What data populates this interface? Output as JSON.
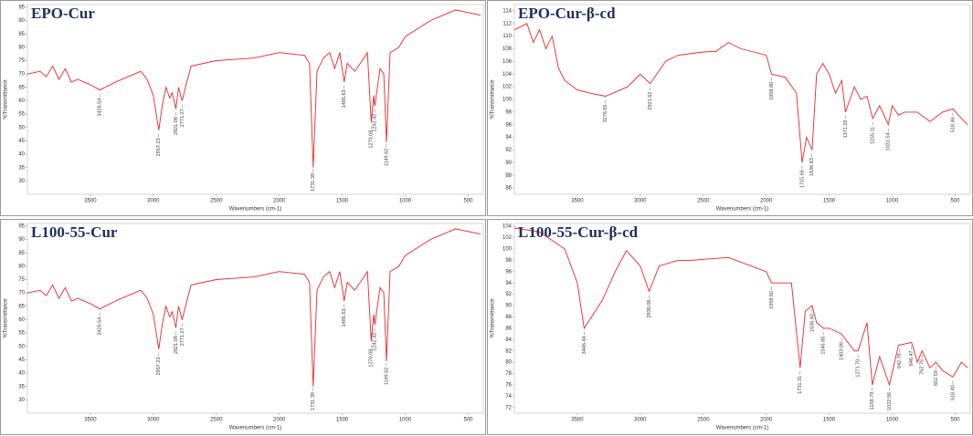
{
  "chart_data": [
    {
      "type": "line",
      "title": "EPO-Cur",
      "x_label": "Wavenumbers (cm-1)",
      "y_label": "%Transmittance",
      "x": [
        4000,
        3900,
        3850,
        3800,
        3750,
        3700,
        3650,
        3600,
        3500,
        3426,
        3300,
        3200,
        3100,
        3050,
        3000,
        2957,
        2930,
        2900,
        2870,
        2850,
        2821,
        2800,
        2771,
        2740,
        2700,
        2500,
        2200,
        2000,
        1800,
        1760,
        1731,
        1700,
        1650,
        1600,
        1560,
        1520,
        1485,
        1460,
        1400,
        1300,
        1270,
        1250,
        1242,
        1200,
        1170,
        1149,
        1120,
        1050,
        1000,
        900,
        800,
        700,
        600,
        500,
        400
      ],
      "series": [
        {
          "color": "#e8262a",
          "values": [
            70,
            71,
            69,
            73,
            68,
            72,
            67,
            68,
            66,
            64,
            67,
            69,
            71,
            68,
            62,
            49,
            58,
            65,
            61,
            63,
            57,
            65,
            60,
            66,
            73,
            75,
            76,
            78,
            77,
            74,
            35,
            71,
            76,
            78,
            72,
            78,
            67,
            74,
            71,
            78,
            52,
            62,
            58,
            72,
            70,
            44.5,
            78,
            80,
            84,
            87,
            90,
            92,
            94,
            93,
            92
          ]
        }
      ],
      "xlim": [
        4000,
        380
      ],
      "ylim": [
        25,
        96
      ],
      "xticks": [
        3500,
        3000,
        2500,
        2000,
        1500,
        1000,
        500
      ],
      "yticks": [
        30,
        35,
        40,
        45,
        50,
        55,
        60,
        65,
        70,
        75,
        80,
        85,
        90,
        95
      ],
      "peak_labels": [
        3426.54,
        2957.23,
        2821.08,
        2771.27,
        1731.39,
        1485.63,
        1270.08,
        1242.42,
        1149.62
      ]
    },
    {
      "type": "line",
      "title": "EPO-Cur-β-cd",
      "x_label": "Wavenumbers (cm-1)",
      "y_label": "%Transmittance",
      "x": [
        4000,
        3900,
        3850,
        3800,
        3750,
        3700,
        3650,
        3600,
        3500,
        3400,
        3276,
        3100,
        3000,
        2921,
        2800,
        2700,
        2500,
        2400,
        2300,
        2200,
        2000,
        1958,
        1850,
        1760,
        1715,
        1680,
        1636,
        1600,
        1550,
        1500,
        1450,
        1400,
        1371,
        1300,
        1250,
        1200,
        1155,
        1100,
        1031,
        1000,
        950,
        900,
        800,
        700,
        600,
        518,
        450,
        400
      ],
      "series": [
        {
          "color": "#e8262a",
          "values": [
            111,
            112,
            109,
            111,
            108,
            110,
            105,
            103,
            101.5,
            101,
            100.5,
            102,
            104,
            102.5,
            106,
            107,
            107.5,
            107.6,
            109,
            108,
            107,
            104,
            103.5,
            101,
            90,
            94,
            92,
            104,
            105.7,
            104,
            101,
            103,
            98,
            102,
            100,
            100.5,
            97,
            99,
            96,
            99,
            97.5,
            98,
            98,
            96.5,
            98,
            98.5,
            97,
            96
          ]
        }
      ],
      "xlim": [
        4000,
        380
      ],
      "ylim": [
        85,
        115
      ],
      "xticks": [
        3500,
        3000,
        2500,
        2000,
        1500,
        1000,
        500
      ],
      "yticks": [
        86,
        88,
        90,
        92,
        94,
        96,
        98,
        100,
        102,
        104,
        106,
        108,
        110,
        112,
        114
      ],
      "peak_labels": [
        3276.65,
        2921.62,
        {
          "value": 1958.8,
          "label": "1958.80"
        },
        1715.66,
        1636.83,
        1371.29,
        1155.11,
        1031.54,
        518.46
      ]
    },
    {
      "type": "line",
      "title": "L100-55-Cur",
      "x_label": "Wavenumbers (cm-1)",
      "y_label": "%Transmittance",
      "x": [
        4000,
        3900,
        3850,
        3800,
        3750,
        3700,
        3650,
        3600,
        3500,
        3426,
        3300,
        3200,
        3100,
        3050,
        3000,
        2957,
        2930,
        2900,
        2870,
        2850,
        2821,
        2800,
        2771,
        2740,
        2700,
        2500,
        2200,
        2000,
        1800,
        1760,
        1731,
        1700,
        1650,
        1600,
        1560,
        1520,
        1485,
        1460,
        1400,
        1300,
        1270,
        1250,
        1242,
        1200,
        1170,
        1149,
        1120,
        1050,
        1000,
        900,
        800,
        700,
        600,
        500,
        400
      ],
      "series": [
        {
          "color": "#e8262a",
          "values": [
            70,
            71,
            69,
            73,
            68,
            72,
            67,
            68,
            66,
            64,
            67,
            69,
            71,
            68,
            62,
            49,
            58,
            65,
            61,
            63,
            57,
            65,
            60,
            66,
            73,
            75,
            76,
            78,
            77,
            74,
            35,
            71,
            76,
            78,
            72,
            78,
            67,
            74,
            71,
            78,
            52,
            62,
            58,
            72,
            70,
            44.5,
            78,
            80,
            84,
            87,
            90,
            92,
            94,
            93,
            92
          ]
        }
      ],
      "xlim": [
        4000,
        380
      ],
      "ylim": [
        25,
        96
      ],
      "xticks": [
        3500,
        3000,
        2500,
        2000,
        1500,
        1000,
        500
      ],
      "yticks": [
        30,
        35,
        40,
        45,
        50,
        55,
        60,
        65,
        70,
        75,
        80,
        85,
        90,
        95
      ],
      "peak_labels": [
        3426.54,
        2957.23,
        2821.08,
        2771.27,
        1731.39,
        1485.63,
        1270.08,
        1242.42,
        1149.62
      ]
    },
    {
      "type": "line",
      "title": "L100-55-Cur-β-cd",
      "x_label": "Wavenumbers (cm-1)",
      "y_label": "%Transmittance",
      "x": [
        4000,
        3800,
        3600,
        3500,
        3446,
        3300,
        3200,
        3110,
        3000,
        2930,
        2850,
        2700,
        2600,
        2300,
        2000,
        1958,
        1800,
        1731,
        1690,
        1636,
        1600,
        1546,
        1500,
        1403,
        1300,
        1271,
        1200,
        1158,
        1100,
        1022,
        950,
        846,
        800,
        762,
        700,
        652,
        600,
        518,
        450,
        400
      ],
      "series": [
        {
          "color": "#e8262a",
          "values": [
            103.7,
            103,
            100,
            94,
            86,
            91,
            96,
            99.7,
            97,
            92.5,
            97,
            98,
            98,
            98.5,
            96,
            94,
            94,
            79,
            89,
            90,
            87,
            86,
            86,
            85,
            82,
            82,
            87,
            76,
            81,
            76,
            83,
            83.5,
            80,
            82,
            79,
            80,
            78.5,
            77.4,
            80,
            79
          ]
        }
      ],
      "xlim": [
        4000,
        380
      ],
      "ylim": [
        71,
        104.5
      ],
      "xticks": [
        3500,
        3000,
        2500,
        2000,
        1500,
        1000,
        500
      ],
      "yticks": [
        72,
        74,
        76,
        78,
        80,
        82,
        84,
        86,
        88,
        90,
        92,
        94,
        96,
        98,
        100,
        102,
        104
      ],
      "peak_labels": [
        3446.44,
        2930.06,
        {
          "value": 1958.6,
          "label": "1958.60"
        },
        1731.31,
        {
          "value": 1636.4,
          "label": "1636.40"
        },
        1546.88,
        1403.08,
        {
          "value": 1271.7,
          "label": "1271.70"
        },
        1158.79,
        1022.56,
        942.76,
        846.47,
        762.76,
        652.59,
        {
          "value": 518.4,
          "label": "518.40"
        }
      ]
    }
  ]
}
